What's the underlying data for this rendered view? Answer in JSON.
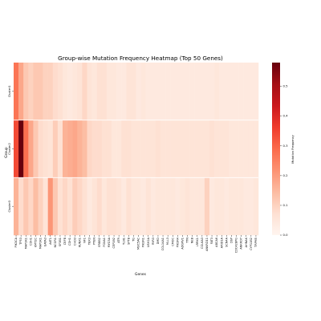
{
  "chart_data": {
    "type": "heatmap",
    "title": "Group-wise Mutation Frequency Heatmap (Top 50 Genes)",
    "xlabel": "Genes",
    "ylabel": "Group",
    "colorbar_label": "Mutation Frequency",
    "colormap": "Reds",
    "vmin": 0,
    "vmax": 0.58,
    "colorbar_ticks": [
      "0.0",
      "0.1",
      "0.2",
      "0.3",
      "0.4",
      "0.5"
    ],
    "colorbar_tick_values": [
      0,
      0.1,
      0.2,
      0.3,
      0.4,
      0.5
    ],
    "rows": [
      "Cluster1",
      "Cluster2",
      "Cluster3"
    ],
    "columns": [
      "PIK3CA",
      "TP53",
      "MAP3K1",
      "CDH1",
      "KMT2C",
      "MAP3K1",
      "GATA3",
      "AKT1",
      "NCOR1",
      "SF3B1",
      "CBFB",
      "CDH1",
      "CHD3",
      "RUNX1",
      "NF1",
      "TBX3",
      "PTEN",
      "ERBB2",
      "FOXA1",
      "MYO3A",
      "CEP192",
      "ATR",
      "TLN1",
      "SPTB",
      "TG",
      "MUC5AC",
      "PIK3R1",
      "USH2A",
      "RYR3",
      "DMD",
      "COL14A1",
      "MLL3",
      "CMOC",
      "PIK3R4",
      "ADGRV1",
      "TTN",
      "NEB",
      "LRRK1",
      "COL6A3",
      "ANKRD11",
      "FAT3",
      "ABCA6",
      "ARID1A",
      "SCN4A",
      "DSP",
      "CDC42BPG",
      "ANKRD7",
      "AHNAK",
      "CYP11B2",
      "TRPM5"
    ],
    "values": [
      [
        0.27,
        0.18,
        0.12,
        0.1,
        0.12,
        0.12,
        0.1,
        0.1,
        0.08,
        0.07,
        0.05,
        0.04,
        0.05,
        0.06,
        0.09,
        0.06,
        0.05,
        0.07,
        0.07,
        0.05,
        0.05,
        0.04,
        0.04,
        0.06,
        0.06,
        0.04,
        0.05,
        0.04,
        0.04,
        0.04,
        0.04,
        0.04,
        0.04,
        0.04,
        0.04,
        0.04,
        0.04,
        0.04,
        0.04,
        0.04,
        0.04,
        0.05,
        0.04,
        0.04,
        0.04,
        0.04,
        0.04,
        0.04,
        0.04,
        0.04
      ],
      [
        0.34,
        0.58,
        0.28,
        0.18,
        0.12,
        0.08,
        0.07,
        0.06,
        0.11,
        0.07,
        0.16,
        0.17,
        0.18,
        0.16,
        0.14,
        0.09,
        0.08,
        0.08,
        0.07,
        0.07,
        0.05,
        0.05,
        0.07,
        0.07,
        0.06,
        0.06,
        0.06,
        0.06,
        0.06,
        0.07,
        0.06,
        0.06,
        0.06,
        0.06,
        0.06,
        0.06,
        0.06,
        0.06,
        0.06,
        0.06,
        0.07,
        0.06,
        0.06,
        0.06,
        0.05,
        0.05,
        0.05,
        0.05,
        0.05,
        0.05
      ],
      [
        0.16,
        0.08,
        0.12,
        0.09,
        0.14,
        0.1,
        0.06,
        0.21,
        0.12,
        0.07,
        0.09,
        0.07,
        0.11,
        0.09,
        0.07,
        0.04,
        0.06,
        0.08,
        0.05,
        0.07,
        0.07,
        0.06,
        0.04,
        0.07,
        0.05,
        0.05,
        0.04,
        0.06,
        0.04,
        0.05,
        0.05,
        0.05,
        0.05,
        0.04,
        0.05,
        0.06,
        0.05,
        0.05,
        0.05,
        0.1,
        0.04,
        0.05,
        0.05,
        0.04,
        0.05,
        0.05,
        0.05,
        0.04,
        0.04,
        0.05
      ]
    ]
  }
}
